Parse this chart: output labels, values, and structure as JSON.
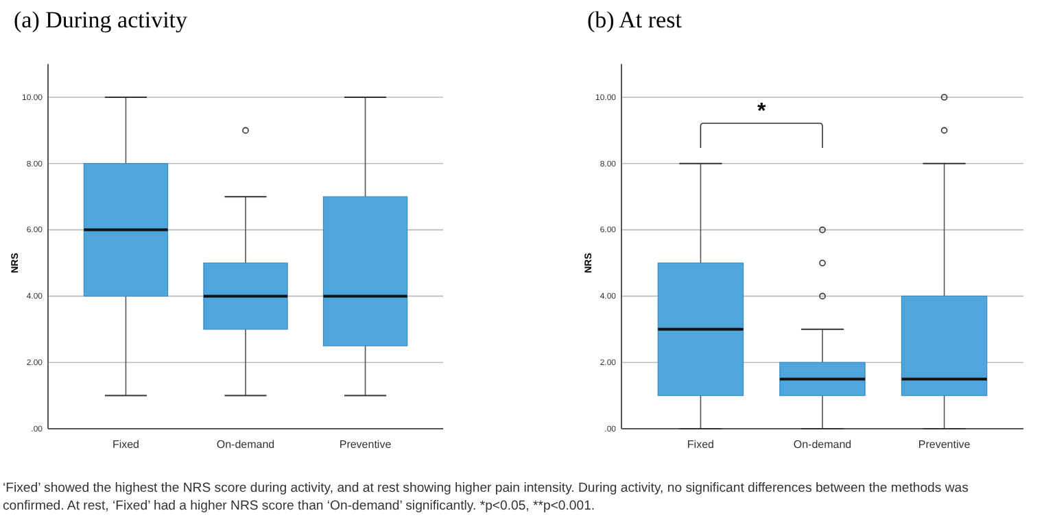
{
  "chart_data": [
    {
      "type": "box",
      "title": "(a) During activity",
      "ylabel": "NRS",
      "categories": [
        "Fixed",
        "On-demand",
        "Preventive"
      ],
      "color": "#4fa6dc",
      "ylim": [
        0,
        11
      ],
      "yticks": [
        {
          "value": 0,
          "label": ".00"
        },
        {
          "value": 2,
          "label": "2.00"
        },
        {
          "value": 4,
          "label": "4.00"
        },
        {
          "value": 6,
          "label": "6.00"
        },
        {
          "value": 8,
          "label": "8.00"
        },
        {
          "value": 10,
          "label": "10.00"
        }
      ],
      "grid": "y",
      "boxes": [
        {
          "low": 1,
          "q1": 4,
          "median": 6,
          "q3": 8,
          "high": 10
        },
        {
          "low": 1,
          "q1": 3,
          "median": 4,
          "q3": 5,
          "high": 7,
          "outliers": [
            9
          ]
        },
        {
          "low": 1,
          "q1": 2.5,
          "median": 4,
          "q3": 7,
          "high": 10
        }
      ],
      "annotations": [
        "‘Fixed’ showed the highest the NRS score during activity, and at rest showing higher pain intensity. During activity, no significant differences between the methods was confirmed. At rest, ‘Fixed’ had a higher NRS score than ‘On-demand’ significantly. *p<0.05, **p<0.001."
      ]
    },
    {
      "type": "box",
      "title": "(b) At rest",
      "ylabel": "NRS",
      "categories": [
        "Fixed",
        "On-demand",
        "Preventive"
      ],
      "color": "#4fa6dc",
      "ylim": [
        0,
        11
      ],
      "yticks": [
        {
          "value": 0,
          "label": ".00"
        },
        {
          "value": 2,
          "label": "2.00"
        },
        {
          "value": 4,
          "label": "4.00"
        },
        {
          "value": 6,
          "label": "6.00"
        },
        {
          "value": 8,
          "label": "8.00"
        },
        {
          "value": 10,
          "label": "10.00"
        }
      ],
      "grid": "y",
      "boxes": [
        {
          "low": 0,
          "q1": 1,
          "median": 3,
          "q3": 5,
          "high": 8
        },
        {
          "low": 0,
          "q1": 1,
          "median": 1.5,
          "q3": 2,
          "high": 3,
          "outliers": [
            4,
            5,
            6
          ]
        },
        {
          "low": 0,
          "q1": 1,
          "median": 1.5,
          "q3": 4,
          "high": 8,
          "outliers": [
            9,
            10
          ]
        }
      ],
      "annotations": [
        "*"
      ]
    }
  ]
}
